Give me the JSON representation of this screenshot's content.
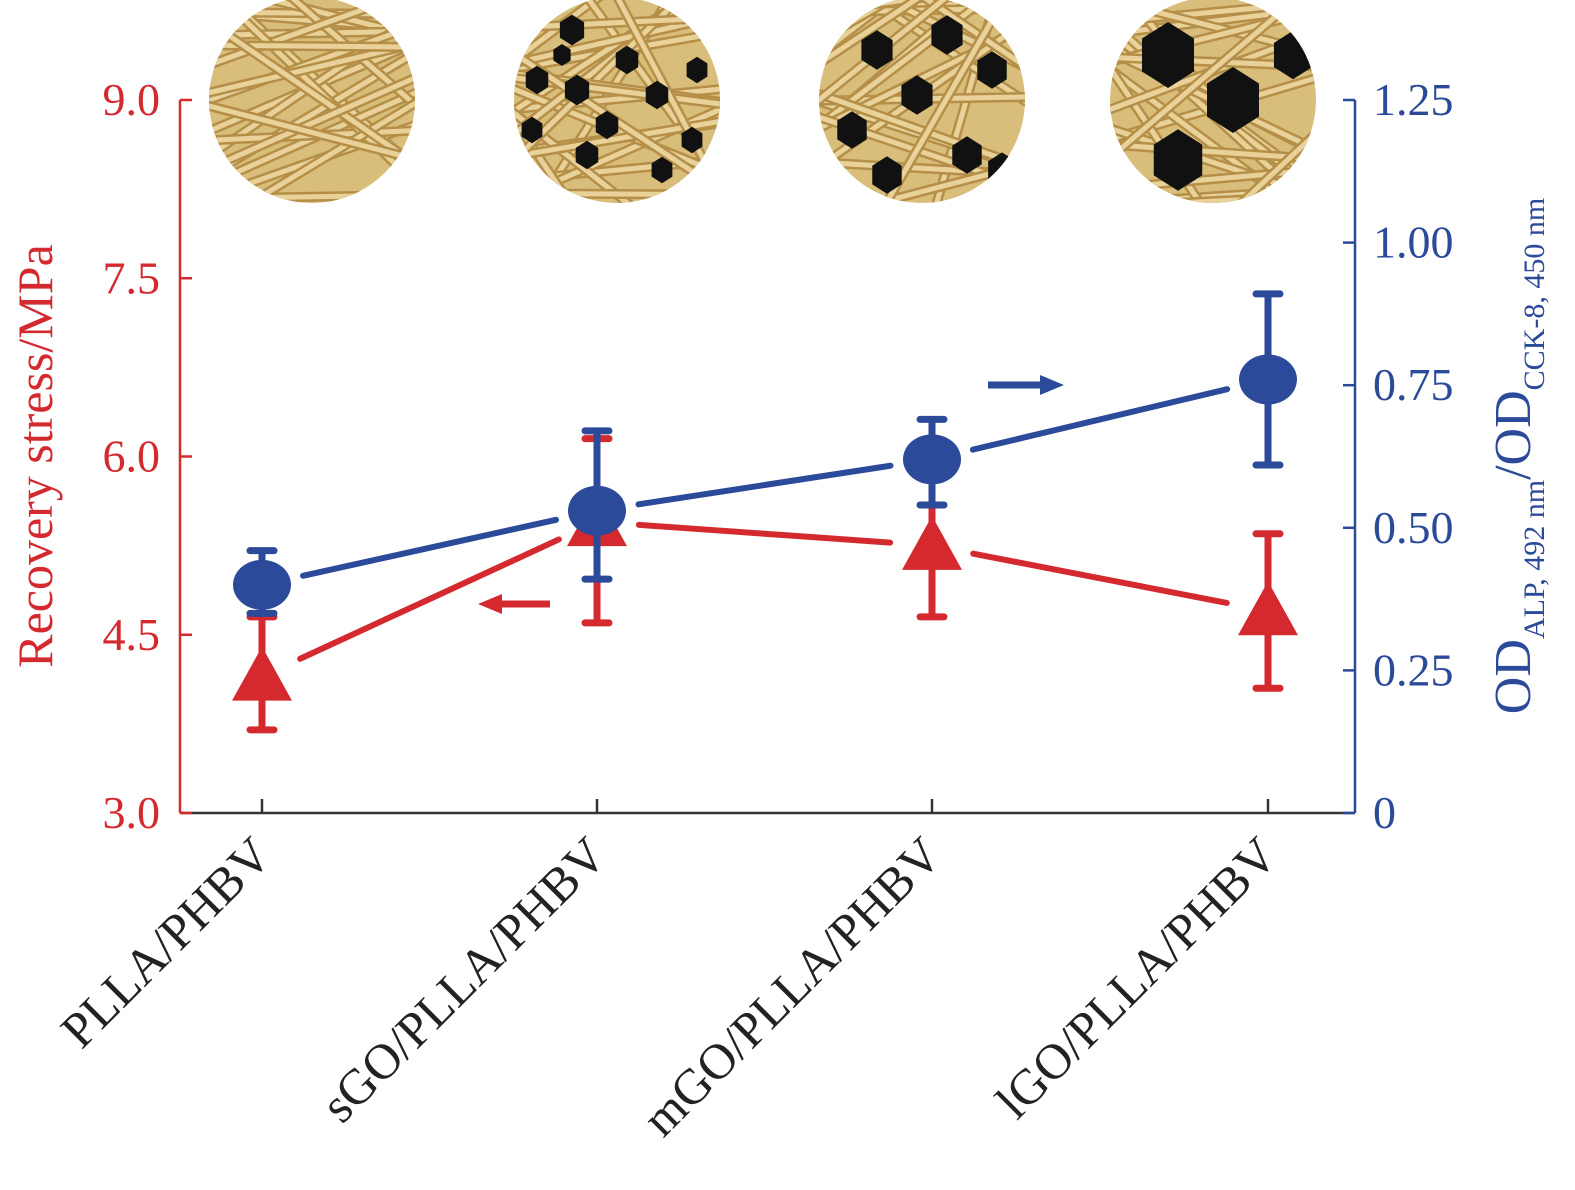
{
  "colors": {
    "left": "#d42a2f",
    "right": "#2c4a9a",
    "fiber_light": "#e8d29a",
    "fiber_dark": "#b58f48",
    "particle": "#111111"
  },
  "chart_data": {
    "type": "line",
    "categories": [
      "PLLA/PHBV",
      "sGO/PLLA/PHBV",
      "mGO/PLLA/PHBV",
      "lGO/PLLA/PHBV"
    ],
    "left_axis": {
      "label": "Recovery stress/MPa",
      "ylim": [
        3.0,
        9.0
      ],
      "ticks": [
        "3.0",
        "4.5",
        "6.0",
        "7.5",
        "9.0"
      ],
      "tick_values": [
        3.0,
        4.5,
        6.0,
        7.5,
        9.0
      ]
    },
    "right_axis": {
      "label_main": "OD",
      "label_sub1": "ALP, 492 nm",
      "label_slash": "/OD",
      "label_sub2": "CCK-8, 450 nm",
      "ylim": [
        0,
        1.25
      ],
      "ticks": [
        "0",
        "0.25",
        "0.50",
        "0.75",
        "1.00",
        "1.25"
      ],
      "tick_values": [
        0,
        0.25,
        0.5,
        0.75,
        1.0,
        1.25
      ]
    },
    "series": [
      {
        "name": "Recovery stress",
        "axis": "left",
        "marker": "triangle",
        "values": [
          4.15,
          5.45,
          5.25,
          4.7
        ],
        "err_low": [
          3.7,
          4.6,
          4.65,
          4.05
        ],
        "err_high": [
          4.65,
          6.15,
          5.85,
          5.35
        ]
      },
      {
        "name": "ALP/CCK-8 ratio",
        "axis": "right",
        "marker": "circle",
        "values": [
          0.4,
          0.53,
          0.62,
          0.76
        ],
        "err_low": [
          0.35,
          0.41,
          0.54,
          0.61
        ],
        "err_high": [
          0.46,
          0.67,
          0.69,
          0.91
        ]
      }
    ],
    "grid": false,
    "legend": "none",
    "insets": [
      {
        "particles": "none"
      },
      {
        "particles": "small"
      },
      {
        "particles": "medium"
      },
      {
        "particles": "large"
      }
    ]
  }
}
